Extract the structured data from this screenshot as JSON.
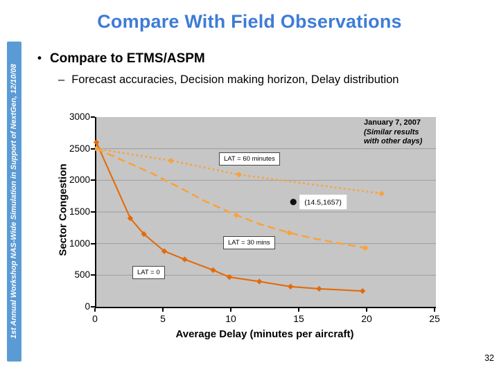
{
  "slide": {
    "title": "Compare With Field Observations",
    "bullet_marker": "•",
    "bullet": "Compare to ETMS/ASPM",
    "sub_bullet_marker": "–",
    "sub_bullet": "Forecast accuracies, Decision making horizon, Delay distribution",
    "sidebar_text": "1st Annual Workshop NAS-Wide Simulation in Support of NextGen, 12/10/08",
    "page_number": "32",
    "colors": {
      "title_blue": "#3e7cd6",
      "sidebar_blue": "#5b9bd5"
    }
  },
  "chart_data": {
    "type": "line",
    "xlabel": "Average Delay (minutes per aircraft)",
    "ylabel": "Sector Congestion",
    "xlim": [
      0,
      25
    ],
    "ylim": [
      0,
      3000
    ],
    "xticks": [
      0,
      5,
      10,
      15,
      20,
      25
    ],
    "yticks": [
      0,
      500,
      1000,
      1500,
      2000,
      2500,
      3000
    ],
    "grid": "horizontal",
    "plot_bg": "#c6c6c6",
    "gridline_color": "#9c9c9c",
    "series": [
      {
        "name": "LAT = 0",
        "style": "solid",
        "color": "#e36b0a",
        "markers": "all",
        "points": [
          [
            0,
            2600
          ],
          [
            2.5,
            1400
          ],
          [
            3.5,
            1150
          ],
          [
            5,
            880
          ],
          [
            6.5,
            750
          ],
          [
            8.6,
            580
          ],
          [
            9.8,
            470
          ],
          [
            12,
            400
          ],
          [
            14.3,
            320
          ],
          [
            16.4,
            285
          ],
          [
            19.6,
            250
          ]
        ]
      },
      {
        "name": "LAT = 30 mins",
        "style": "dashed",
        "color": "#f9a23c",
        "points": [
          [
            0,
            2500
          ],
          [
            2,
            2310
          ],
          [
            4,
            2120
          ],
          [
            6,
            1900
          ],
          [
            8,
            1670
          ],
          [
            10.3,
            1450
          ],
          [
            12,
            1310
          ],
          [
            14.2,
            1170
          ],
          [
            16,
            1080
          ],
          [
            18,
            1000
          ],
          [
            19.8,
            930
          ]
        ],
        "marker_points": [
          [
            0,
            2500
          ],
          [
            10.3,
            1450
          ],
          [
            14.2,
            1170
          ],
          [
            19.8,
            930
          ]
        ]
      },
      {
        "name": "LAT = 60 minutes",
        "style": "dotted",
        "color": "#f9a23c",
        "points": [
          [
            0,
            2500
          ],
          [
            5.5,
            2310
          ],
          [
            10.5,
            2090
          ],
          [
            15,
            1960
          ],
          [
            21,
            1790
          ]
        ],
        "marker_points": [
          [
            5.5,
            2310
          ],
          [
            10.5,
            2090
          ],
          [
            21,
            1790
          ]
        ]
      }
    ],
    "point_annotation": {
      "x": 14.5,
      "y": 1657,
      "label": "(14.5,1657)"
    },
    "annotations": {
      "lat60": "LAT = 60 minutes",
      "lat30": "LAT = 30 mins",
      "lat0": "LAT = 0"
    },
    "note_line1": "January 7, 2007",
    "note_line2": "(Similar results",
    "note_line3": "with other days)"
  }
}
